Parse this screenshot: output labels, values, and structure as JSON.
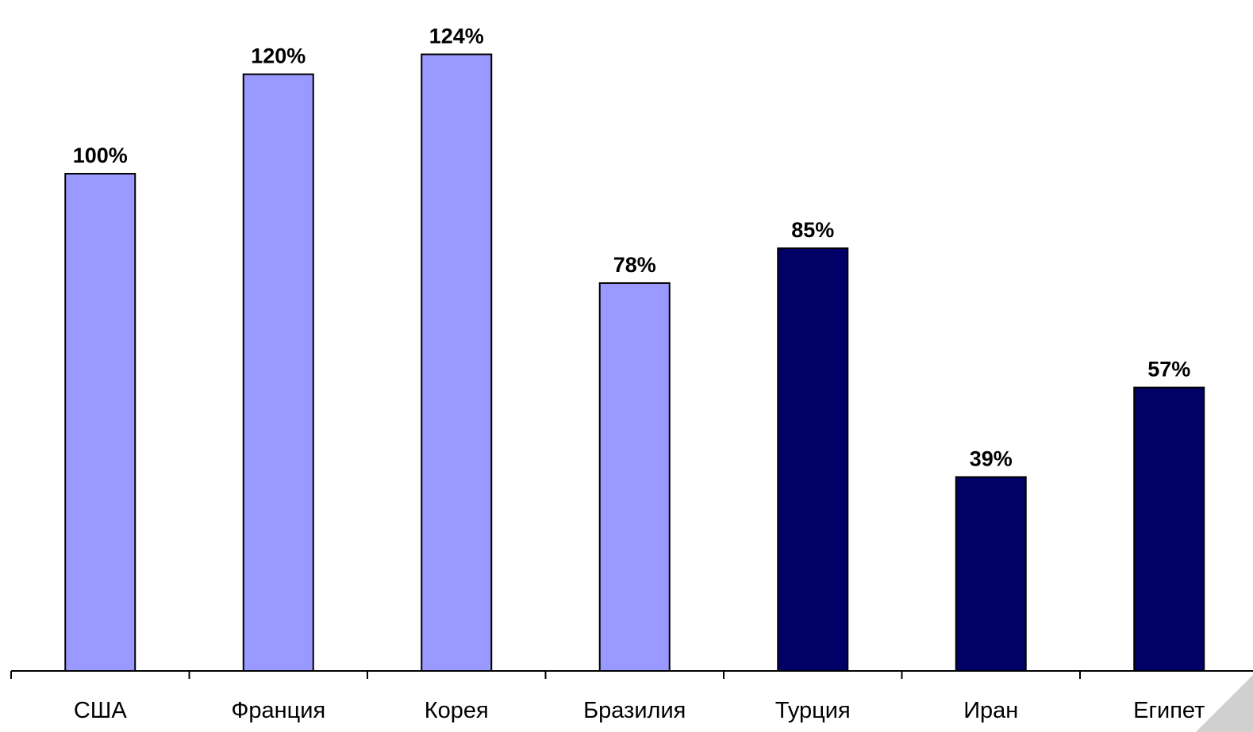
{
  "colors": {
    "light_bar": "#9999ff",
    "dark_bar": "#000066",
    "axis": "#000000",
    "bar_outline": "#000000"
  },
  "chart_data": {
    "type": "bar",
    "categories": [
      "США",
      "Франция",
      "Корея",
      "Бразилия",
      "Турция",
      "Иран",
      "Египет"
    ],
    "values": [
      100,
      120,
      124,
      78,
      85,
      39,
      57
    ],
    "data_labels": [
      "100%",
      "120%",
      "124%",
      "78%",
      "85%",
      "39%",
      "57%"
    ],
    "bar_color_group": [
      "light",
      "light",
      "light",
      "light",
      "dark",
      "dark",
      "dark"
    ],
    "title": "",
    "xlabel": "",
    "ylabel": "",
    "ylim": [
      0,
      124
    ],
    "grid": false,
    "legend": "none"
  }
}
